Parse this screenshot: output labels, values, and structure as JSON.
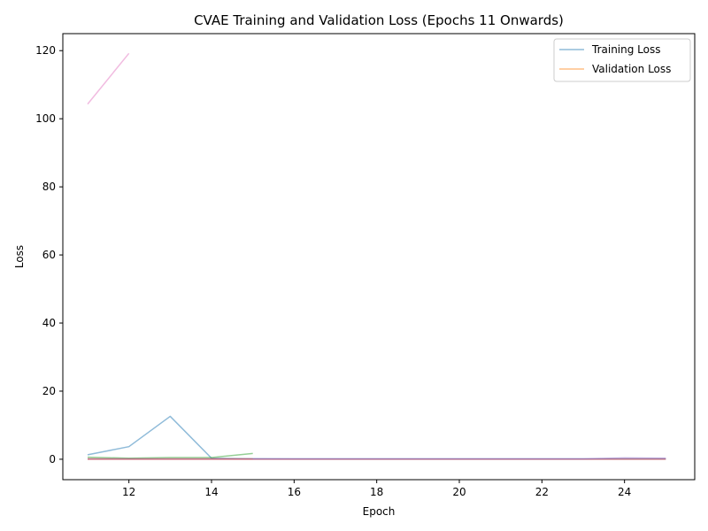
{
  "chart_data": {
    "type": "line",
    "title": "CVAE Training and Validation Loss (Epochs 11 Onwards)",
    "xlabel": "Epoch",
    "ylabel": "Loss",
    "xlim": [
      10.4,
      25.7
    ],
    "ylim": [
      -6.0,
      125.0
    ],
    "xticks": [
      12,
      14,
      16,
      18,
      20,
      22,
      24
    ],
    "yticks": [
      0,
      20,
      40,
      60,
      80,
      100,
      120
    ],
    "grid": false,
    "legend_position": "top-right",
    "legend": [
      "Training Loss",
      "Validation Loss"
    ],
    "series": [
      {
        "name": "Training Loss",
        "color": "#1f77b4",
        "x": [
          11,
          12,
          13,
          14,
          15,
          16,
          17,
          18,
          19,
          20,
          21,
          22,
          23,
          24,
          25
        ],
        "y": [
          1.3,
          3.7,
          12.6,
          0.3,
          0.15,
          0.1,
          0.1,
          0.1,
          0.1,
          0.1,
          0.1,
          0.1,
          0.1,
          0.1,
          0.1
        ]
      },
      {
        "name": "Validation Loss",
        "color": "#ff7f0e",
        "x": [
          11,
          12,
          13,
          14,
          15
        ],
        "y": [
          0.1,
          0.1,
          0.1,
          0.1,
          0.1
        ]
      },
      {
        "color": "#2ca02c",
        "x": [
          11,
          12,
          13,
          14,
          15
        ],
        "y": [
          0.6,
          0.3,
          0.5,
          0.5,
          1.7
        ]
      },
      {
        "color": "#d62728",
        "x": [
          11,
          12,
          13,
          14,
          15,
          16,
          17,
          18,
          19,
          20,
          21,
          22,
          23,
          24,
          25
        ],
        "y": [
          0.0,
          0.0,
          0.0,
          0.0,
          0.0,
          0.0,
          0.0,
          0.0,
          0.0,
          0.0,
          0.0,
          0.0,
          0.0,
          0.0,
          0.0
        ]
      },
      {
        "color": "#9467bd",
        "x": [
          11,
          12,
          13,
          14,
          15,
          16,
          17,
          18,
          19,
          20,
          21,
          22,
          23,
          24,
          25
        ],
        "y": [
          0.1,
          0.1,
          0.1,
          0.1,
          0.1,
          0.1,
          0.1,
          0.1,
          0.1,
          0.1,
          0.1,
          0.1,
          0.1,
          0.4,
          0.3
        ]
      },
      {
        "color": "#e377c2",
        "x": [
          11,
          12
        ],
        "y": [
          104.3,
          119.2
        ]
      }
    ]
  }
}
